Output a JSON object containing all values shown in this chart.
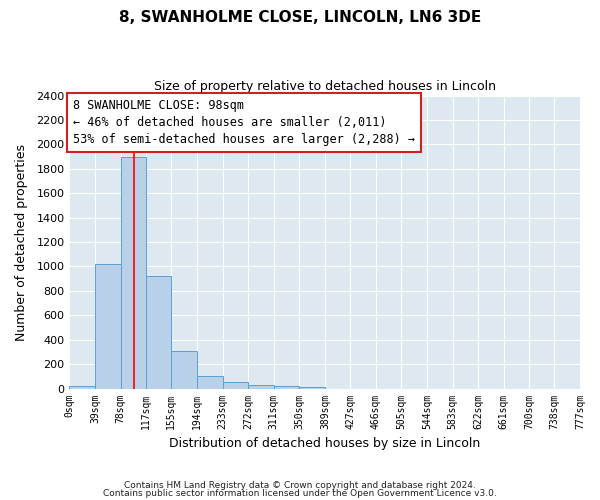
{
  "title": "8, SWANHOLME CLOSE, LINCOLN, LN6 3DE",
  "subtitle": "Size of property relative to detached houses in Lincoln",
  "xlabel": "Distribution of detached houses by size in Lincoln",
  "ylabel": "Number of detached properties",
  "bar_color": "#b8d0e8",
  "bar_edge_color": "#5a9fd4",
  "background_color": "#dde8f0",
  "grid_color": "#ffffff",
  "red_line_x": 98,
  "annotation_title": "8 SWANHOLME CLOSE: 98sqm",
  "annotation_line1": "← 46% of detached houses are smaller (2,011)",
  "annotation_line2": "53% of semi-detached houses are larger (2,288) →",
  "footer_line1": "Contains HM Land Registry data © Crown copyright and database right 2024.",
  "footer_line2": "Contains public sector information licensed under the Open Government Licence v3.0.",
  "bin_edges": [
    0,
    39,
    78,
    117,
    155,
    194,
    233,
    272,
    311,
    350,
    389,
    427,
    466,
    505,
    544,
    583,
    622,
    661,
    700,
    738,
    777
  ],
  "bin_counts": [
    20,
    1020,
    1900,
    920,
    310,
    105,
    55,
    30,
    20,
    12,
    0,
    0,
    0,
    0,
    0,
    0,
    0,
    0,
    0,
    0
  ],
  "ylim": [
    0,
    2400
  ],
  "yticks": [
    0,
    200,
    400,
    600,
    800,
    1000,
    1200,
    1400,
    1600,
    1800,
    2000,
    2200,
    2400
  ]
}
